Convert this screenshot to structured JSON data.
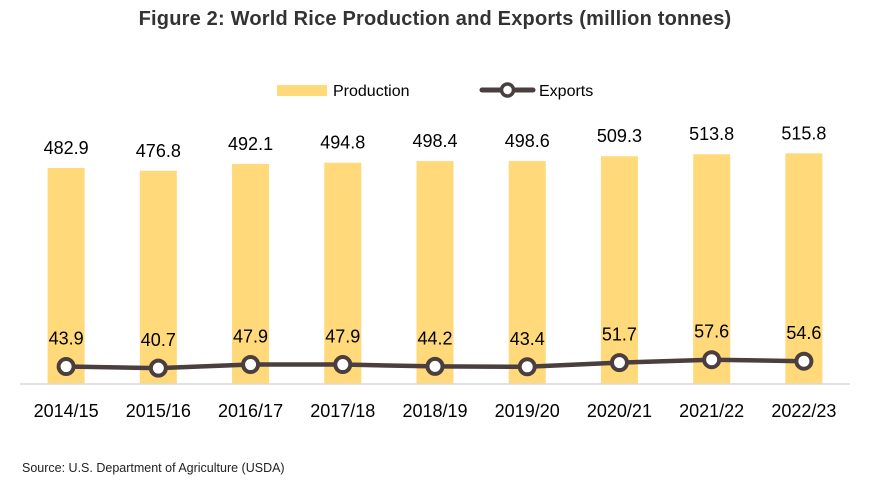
{
  "title": "Figure 2: World Rice Production and Exports (million tonnes)",
  "source": "Source: U.S. Department of Agriculture (USDA)",
  "colors": {
    "bar": "#FFD97A",
    "line": "#4A3E3E",
    "marker_fill": "#ffffff",
    "axis": "#D9D9D9"
  },
  "chart_data": {
    "type": "bar",
    "categories": [
      "2014/15",
      "2015/16",
      "2016/17",
      "2017/18",
      "2018/19",
      "2019/20",
      "2020/21",
      "2021/22",
      "2022/23"
    ],
    "series": [
      {
        "name": "Production",
        "type": "bar",
        "values": [
          482.9,
          476.8,
          492.1,
          494.8,
          498.4,
          498.6,
          509.3,
          513.8,
          515.8
        ],
        "labels": [
          "482.9",
          "476.8",
          "492.1",
          "494.8",
          "498.4",
          "498.6",
          "509.3",
          "513.8",
          "515.8"
        ]
      },
      {
        "name": "Exports",
        "type": "line",
        "values": [
          43.9,
          40.7,
          47.9,
          47.9,
          44.2,
          43.4,
          51.7,
          57.6,
          54.6
        ],
        "labels": [
          "43.9",
          "40.7",
          "47.9",
          "47.9",
          "44.2",
          "43.4",
          "51.7",
          "57.6",
          "54.6"
        ]
      }
    ],
    "legend_position": "top-center",
    "grid": false
  }
}
